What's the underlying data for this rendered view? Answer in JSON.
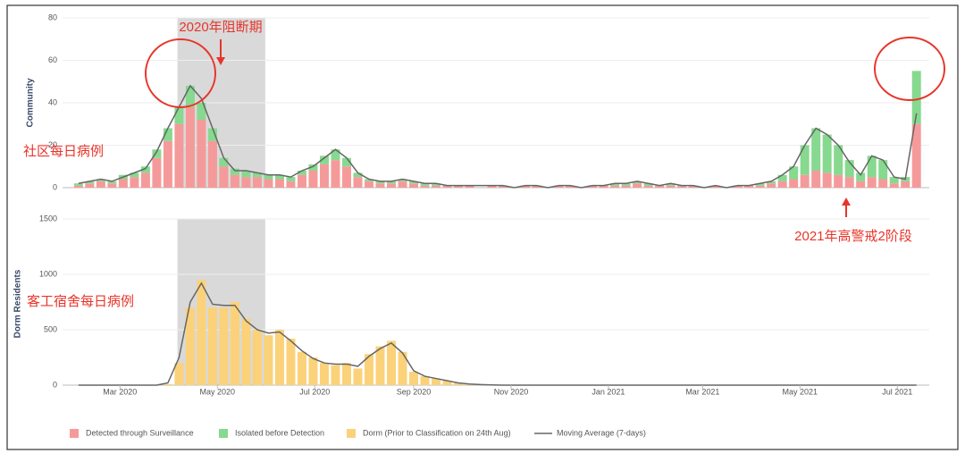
{
  "chart_data": [
    {
      "type": "bar",
      "ylabel": "Community",
      "annotations": [
        "2020年阻断期",
        "社区每日病例",
        "2021年高警戒2阶段"
      ],
      "shaded": [
        65,
        120
      ],
      "xlim": [
        -7,
        536
      ],
      "xticks": [
        {
          "value": 29,
          "label": "Mar 2020"
        },
        {
          "value": 90,
          "label": "May 2020"
        },
        {
          "value": 151,
          "label": "Jul 2020"
        },
        {
          "value": 213,
          "label": "Sep 2020"
        },
        {
          "value": 274,
          "label": "Nov 2020"
        },
        {
          "value": 335,
          "label": "Jan 2021"
        },
        {
          "value": 394,
          "label": "Mar 2021"
        },
        {
          "value": 455,
          "label": "May 2021"
        },
        {
          "value": 516,
          "label": "Jul 2021"
        }
      ],
      "ylim": [
        0,
        80
      ],
      "yticks": [
        0,
        20,
        40,
        60,
        80
      ],
      "grid": true,
      "x": [
        3,
        10,
        17,
        24,
        31,
        38,
        45,
        52,
        59,
        66,
        73,
        80,
        87,
        94,
        101,
        108,
        115,
        122,
        129,
        136,
        143,
        150,
        157,
        164,
        171,
        178,
        185,
        192,
        199,
        206,
        213,
        220,
        227,
        234,
        241,
        248,
        255,
        262,
        269,
        276,
        283,
        290,
        297,
        304,
        311,
        318,
        325,
        332,
        339,
        346,
        353,
        360,
        367,
        374,
        381,
        388,
        395,
        402,
        409,
        416,
        423,
        430,
        437,
        444,
        451,
        458,
        465,
        472,
        479,
        486,
        493,
        500,
        507,
        514,
        521,
        528
      ],
      "series": [
        {
          "name": "Detected through Surveillance",
          "color": "#f59a9a",
          "kind": "bar",
          "values": [
            1,
            2,
            3,
            2,
            4,
            5,
            7,
            14,
            22,
            30,
            38,
            32,
            22,
            10,
            6,
            5,
            5,
            4,
            4,
            3,
            6,
            8,
            11,
            13,
            10,
            5,
            3,
            2,
            2,
            3,
            2,
            1,
            1,
            1,
            1,
            1,
            0,
            1,
            1,
            0,
            1,
            1,
            0,
            1,
            1,
            0,
            1,
            1,
            1,
            1,
            2,
            1,
            1,
            1,
            1,
            1,
            0,
            1,
            0,
            1,
            1,
            1,
            2,
            3,
            4,
            6,
            8,
            7,
            6,
            5,
            3,
            5,
            4,
            2,
            3,
            30
          ]
        },
        {
          "name": "Isolated before Detection",
          "color": "#86d98f",
          "kind": "bar",
          "values": [
            1,
            1,
            1,
            1,
            2,
            2,
            3,
            4,
            6,
            8,
            10,
            8,
            6,
            4,
            3,
            3,
            2,
            2,
            2,
            2,
            2,
            3,
            4,
            5,
            4,
            2,
            1,
            1,
            1,
            1,
            1,
            1,
            1,
            0,
            0,
            0,
            0,
            0,
            0,
            0,
            0,
            0,
            0,
            0,
            0,
            0,
            0,
            0,
            1,
            1,
            1,
            1,
            0,
            1,
            0,
            0,
            0,
            0,
            0,
            0,
            0,
            1,
            1,
            3,
            6,
            14,
            20,
            18,
            14,
            8,
            4,
            10,
            9,
            3,
            2,
            25
          ]
        },
        {
          "name": "Moving Average (7-days)",
          "color": "#666666",
          "kind": "line",
          "values": [
            2,
            3,
            4,
            3,
            5,
            7,
            9,
            17,
            28,
            38,
            48,
            42,
            28,
            14,
            8,
            8,
            7,
            6,
            6,
            5,
            8,
            10,
            14,
            18,
            14,
            7,
            4,
            3,
            3,
            4,
            3,
            2,
            2,
            1,
            1,
            1,
            1,
            1,
            1,
            0,
            1,
            1,
            0,
            1,
            1,
            0,
            1,
            1,
            2,
            2,
            3,
            2,
            1,
            2,
            1,
            1,
            0,
            1,
            0,
            1,
            1,
            2,
            3,
            6,
            10,
            20,
            28,
            25,
            20,
            12,
            6,
            15,
            13,
            5,
            4,
            35
          ]
        }
      ]
    },
    {
      "type": "bar",
      "ylabel": "Dorm Residents",
      "annotations": [
        "客工宿舍每日病例"
      ],
      "shaded": [
        65,
        120
      ],
      "xlim": [
        -7,
        536
      ],
      "ylim": [
        0,
        1500
      ],
      "yticks": [
        0,
        500,
        1000,
        1500
      ],
      "grid": true,
      "x": [
        3,
        10,
        17,
        24,
        31,
        38,
        45,
        52,
        59,
        66,
        73,
        80,
        87,
        94,
        101,
        108,
        115,
        122,
        129,
        136,
        143,
        150,
        157,
        164,
        171,
        178,
        185,
        192,
        199,
        206,
        213,
        220,
        227,
        234,
        241,
        248,
        255,
        262,
        269,
        276,
        283,
        290,
        297,
        304,
        311,
        318,
        325,
        332,
        339,
        346,
        353,
        360,
        367,
        374,
        381,
        388,
        395,
        402,
        409,
        416,
        423,
        430,
        437,
        444,
        451,
        458,
        465,
        472,
        479,
        486,
        493,
        500,
        507,
        514,
        521,
        528
      ],
      "series": [
        {
          "name": "Dorm (Prior to Classification on 24th Aug)",
          "color": "#fbd27a",
          "kind": "bar",
          "values": [
            0,
            0,
            0,
            0,
            0,
            0,
            0,
            0,
            10,
            200,
            700,
            950,
            700,
            700,
            750,
            600,
            500,
            450,
            500,
            420,
            300,
            250,
            200,
            180,
            200,
            150,
            280,
            350,
            400,
            300,
            120,
            80,
            60,
            40,
            20,
            10,
            5,
            2,
            0,
            0,
            0,
            0,
            0,
            0,
            0,
            0,
            0,
            0,
            0,
            0,
            0,
            0,
            0,
            0,
            0,
            0,
            0,
            0,
            0,
            0,
            0,
            0,
            0,
            0,
            0,
            0,
            0,
            0,
            0,
            0,
            0,
            0,
            0,
            0,
            0,
            0
          ]
        },
        {
          "name": "Moving Average (7-days)",
          "color": "#666666",
          "kind": "line",
          "values": [
            0,
            0,
            0,
            0,
            0,
            0,
            0,
            0,
            20,
            250,
            750,
            920,
            730,
            720,
            720,
            580,
            500,
            470,
            480,
            400,
            310,
            240,
            200,
            190,
            190,
            170,
            260,
            330,
            380,
            290,
            130,
            80,
            60,
            40,
            20,
            10,
            5,
            2,
            0,
            0,
            0,
            0,
            0,
            0,
            0,
            0,
            0,
            0,
            0,
            0,
            0,
            0,
            0,
            0,
            0,
            0,
            0,
            0,
            0,
            0,
            0,
            0,
            0,
            0,
            0,
            0,
            0,
            0,
            0,
            0,
            0,
            0,
            0,
            0,
            0,
            0
          ]
        }
      ]
    }
  ]
}
